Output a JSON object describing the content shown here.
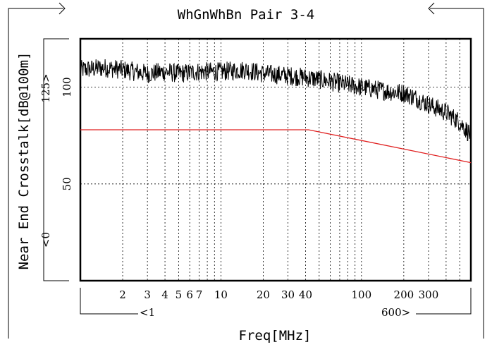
{
  "chart_data": {
    "type": "line",
    "title": "WhGnWhBn Pair 3-4",
    "xlabel": "Freq[MHz]",
    "ylabel": "Near End Crosstalk[dB@100m]",
    "x_scale": "log",
    "xlim": [
      1,
      600
    ],
    "ylim": [
      0,
      125
    ],
    "x_range_marks": {
      "start": "<1",
      "end": "600>"
    },
    "y_range_marks": {
      "start": "<0",
      "end": "125>"
    },
    "x_tick_labels": [
      "2",
      "3",
      "4",
      "5",
      "6",
      "7",
      "10",
      "20",
      "30",
      "40",
      "100",
      "200",
      "300"
    ],
    "x_tick_values": [
      2,
      3,
      4,
      5,
      6,
      7,
      10,
      20,
      30,
      40,
      100,
      200,
      300
    ],
    "x_minor_gridlines": [
      2,
      3,
      4,
      5,
      6,
      7,
      8,
      9,
      10,
      20,
      30,
      40,
      50,
      60,
      70,
      80,
      90,
      100,
      200,
      300,
      400,
      500
    ],
    "y_tick_labels": [
      "50",
      "100"
    ],
    "y_tick_values": [
      50,
      100
    ],
    "grid": true,
    "series": [
      {
        "role": "measured",
        "color": "#000000",
        "x": [
          1,
          1.5,
          2,
          3,
          4,
          5,
          7,
          10,
          15,
          20,
          30,
          40,
          50,
          70,
          100,
          150,
          200,
          250,
          300,
          400,
          500,
          600
        ],
        "y": [
          109,
          110,
          109,
          107,
          108,
          107,
          108,
          108,
          109,
          107,
          106,
          105,
          104,
          102,
          100,
          98,
          97,
          94,
          91,
          87,
          82,
          75
        ],
        "noise_amplitude": 5
      },
      {
        "role": "limit",
        "color": "#e02020",
        "x": [
          1,
          42,
          600
        ],
        "y": [
          78,
          78,
          61
        ]
      }
    ]
  }
}
